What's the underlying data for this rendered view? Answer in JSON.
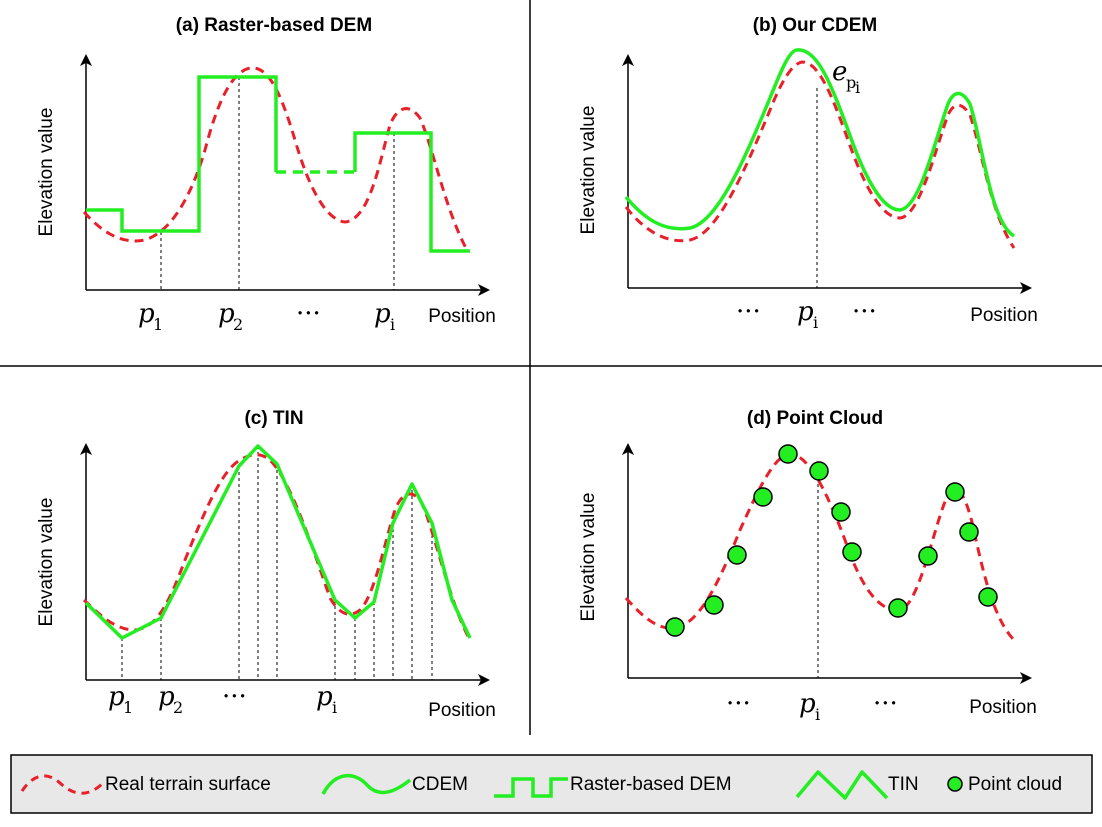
{
  "colors": {
    "real_terrain": "#e8202a",
    "model": "#22ee22",
    "point_fill": "#22ee22",
    "legend_bg": "#e8e8e8"
  },
  "panels": {
    "a": {
      "title": "(a) Raster-based DEM",
      "ylabel": "Elevation value",
      "xlabel": "Position",
      "ticks": [
        {
          "var": "p",
          "sub": "1"
        },
        {
          "var": "p",
          "sub": "2"
        },
        {
          "text": "···"
        },
        {
          "var": "p",
          "sub": "i"
        }
      ]
    },
    "b": {
      "title": "(b) Our CDEM",
      "ylabel": "Elevation value",
      "xlabel": "Position",
      "error_label": {
        "var": "e",
        "sub": "p",
        "subsub": "i"
      },
      "ticks": [
        {
          "text": "···"
        },
        {
          "var": "p",
          "sub": "i"
        },
        {
          "text": "···"
        }
      ]
    },
    "c": {
      "title": "(c) TIN",
      "ylabel": "Elevation value",
      "xlabel": "Position",
      "ticks": [
        {
          "var": "p",
          "sub": "1"
        },
        {
          "var": "p",
          "sub": "2"
        },
        {
          "text": "···"
        },
        {
          "var": "p",
          "sub": "i"
        }
      ]
    },
    "d": {
      "title": "(d) Point Cloud",
      "ylabel": "Elevation value",
      "xlabel": "Position",
      "ticks": [
        {
          "text": "···"
        },
        {
          "var": "p",
          "sub": "i"
        },
        {
          "text": "···"
        }
      ]
    }
  },
  "legend": {
    "real_terrain": "Real terrain surface",
    "cdem": "CDEM",
    "raster": "Raster-based DEM",
    "tin": "TIN",
    "point_cloud": "Point cloud"
  }
}
